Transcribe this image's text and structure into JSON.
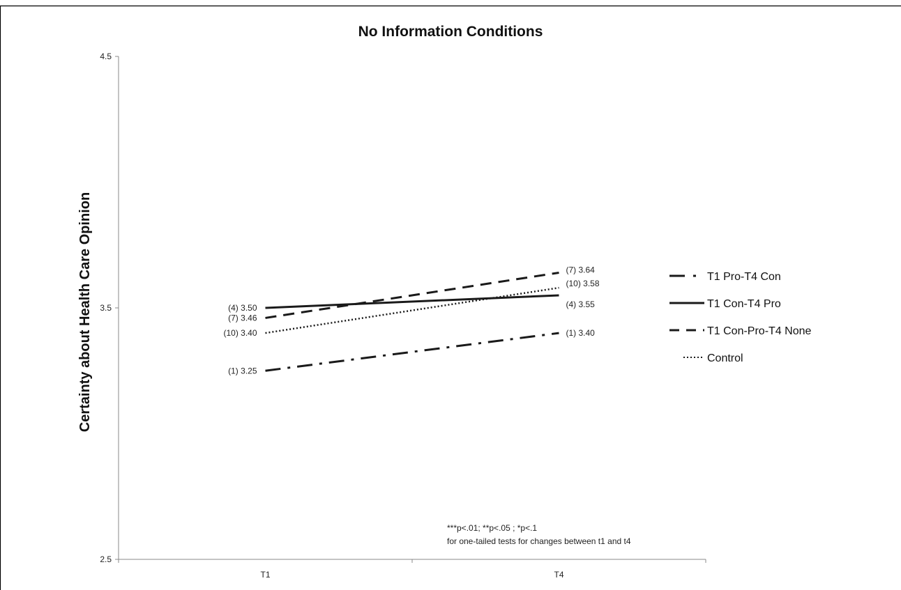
{
  "chart_data": {
    "type": "line",
    "title": "No Information Conditions",
    "xlabel": "",
    "ylabel": "Certainty  about Health Care Opinion",
    "categories": [
      "T1",
      "T4"
    ],
    "ylim": [
      2.5,
      4.5
    ],
    "yticks": [
      "2.5",
      "3.5",
      "4.5"
    ],
    "grid": false,
    "legend_position": "right",
    "series": [
      {
        "name": "T1 Pro-T4 Con",
        "style": "dashdot",
        "values": [
          3.25,
          3.4
        ],
        "labels": [
          "(1) 3.25",
          "(1) 3.40"
        ]
      },
      {
        "name": "T1 Con-T4 Pro",
        "style": "solid",
        "values": [
          3.5,
          3.55
        ],
        "labels": [
          "(4) 3.50",
          "(4) 3.55"
        ]
      },
      {
        "name": "T1 Con-Pro-T4 None",
        "style": "dashed",
        "values": [
          3.46,
          3.64
        ],
        "labels": [
          "(7) 3.46",
          "(7) 3.64"
        ]
      },
      {
        "name": "Control",
        "style": "dotted",
        "values": [
          3.4,
          3.58
        ],
        "labels": [
          "(10) 3.40",
          "(10) 3.58"
        ]
      }
    ],
    "annotations": [
      "***p<.01; **p<.05 ; *p<.1",
      "for one-tailed tests for changes between t1 and t4"
    ],
    "colors": {
      "line": "#1a1a1a",
      "axis": "#888888"
    }
  }
}
